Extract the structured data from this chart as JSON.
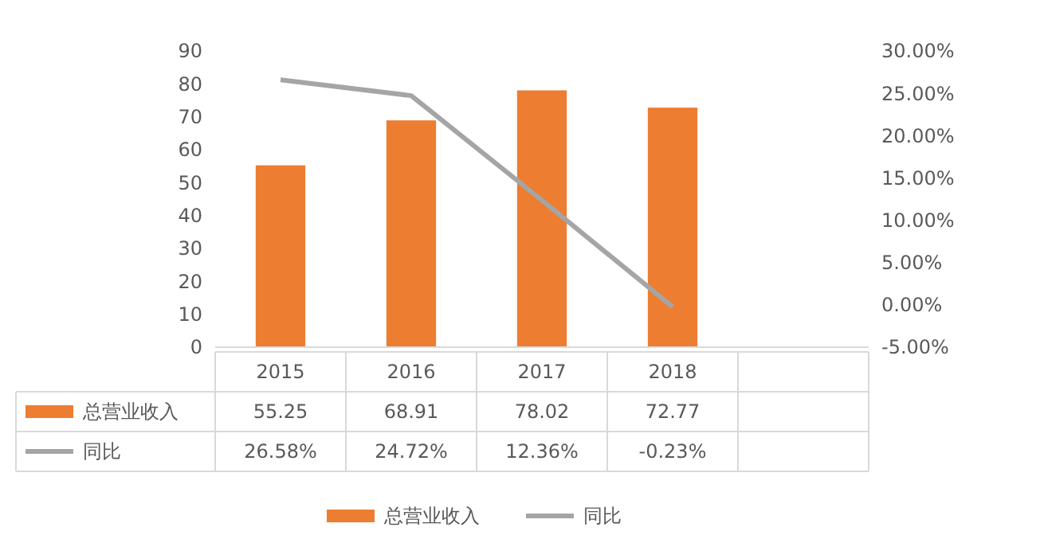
{
  "chart_data": {
    "type": "bar",
    "categories": [
      "2015",
      "2016",
      "2017",
      "2018",
      null
    ],
    "series": [
      {
        "name": "总营业收入",
        "color": "#ed7d31",
        "values": [
          55.25,
          68.91,
          78.02,
          72.77,
          null
        ],
        "value_labels": [
          "55.25",
          "68.91",
          "78.02",
          "72.77",
          null
        ]
      },
      {
        "name": "同比",
        "type": "line",
        "axis": "y2",
        "color": "#a5a5a5",
        "values": [
          26.58,
          24.72,
          12.36,
          -0.23,
          null
        ],
        "value_labels": [
          "26.58%",
          "24.72%",
          "12.36%",
          "-0.23%",
          null
        ]
      }
    ],
    "ylim": [
      0,
      90
    ],
    "yticks": [
      0,
      10,
      20,
      30,
      40,
      50,
      60,
      70,
      80,
      90
    ],
    "y2lim": [
      -5,
      30
    ],
    "y2ticks": [
      {
        "value": -5,
        "label": "-5.00%"
      },
      {
        "value": 0,
        "label": "0.00%"
      },
      {
        "value": 5,
        "label": "5.00%"
      },
      {
        "value": 10,
        "label": "10.00%"
      },
      {
        "value": 15,
        "label": "15.00%"
      },
      {
        "value": 20,
        "label": "20.00%"
      },
      {
        "value": 25,
        "label": "25.00%"
      },
      {
        "value": 30,
        "label": "30.00%"
      }
    ],
    "grid": false,
    "legend": "bottom",
    "marker": "none"
  }
}
